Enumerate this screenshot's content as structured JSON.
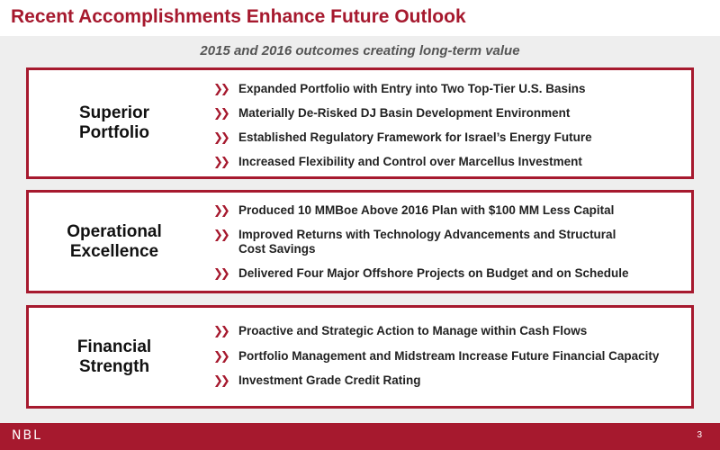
{
  "slide": {
    "title": "Recent Accomplishments Enhance Future Outlook",
    "subtitle": "2015 and 2016 outcomes creating long-term value",
    "accent_color": "#a6192e"
  },
  "panels": [
    {
      "label_lines": [
        "Superior",
        "Portfolio"
      ],
      "bullets": [
        [
          "Expanded Portfolio with Entry into Two Top-Tier U.S. Basins"
        ],
        [
          "Materially De-Risked DJ Basin Development Environment"
        ],
        [
          "Established Regulatory Framework for Israel’s Energy Future"
        ],
        [
          "Increased Flexibility and Control over Marcellus Investment"
        ]
      ]
    },
    {
      "label_lines": [
        "Operational",
        "Excellence"
      ],
      "bullets": [
        [
          "Produced 10 MMBoe Above 2016 Plan with $100 MM Less Capital"
        ],
        [
          "Improved Returns with Technology Advancements and Structural",
          "Cost Savings"
        ],
        [
          "Delivered Four Major Offshore Projects on Budget and on Schedule"
        ]
      ]
    },
    {
      "label_lines": [
        "Financial",
        "Strength"
      ],
      "bullets": [
        [
          "Proactive and Strategic Action to Manage within Cash Flows"
        ],
        [
          "Portfolio Management and Midstream Increase Future Financial Capacity"
        ],
        [
          "Investment Grade Credit Rating"
        ]
      ]
    }
  ],
  "bullet_icon": "double-chevron-right-icon",
  "footer": {
    "logo": "NBL",
    "page_number": "3"
  }
}
